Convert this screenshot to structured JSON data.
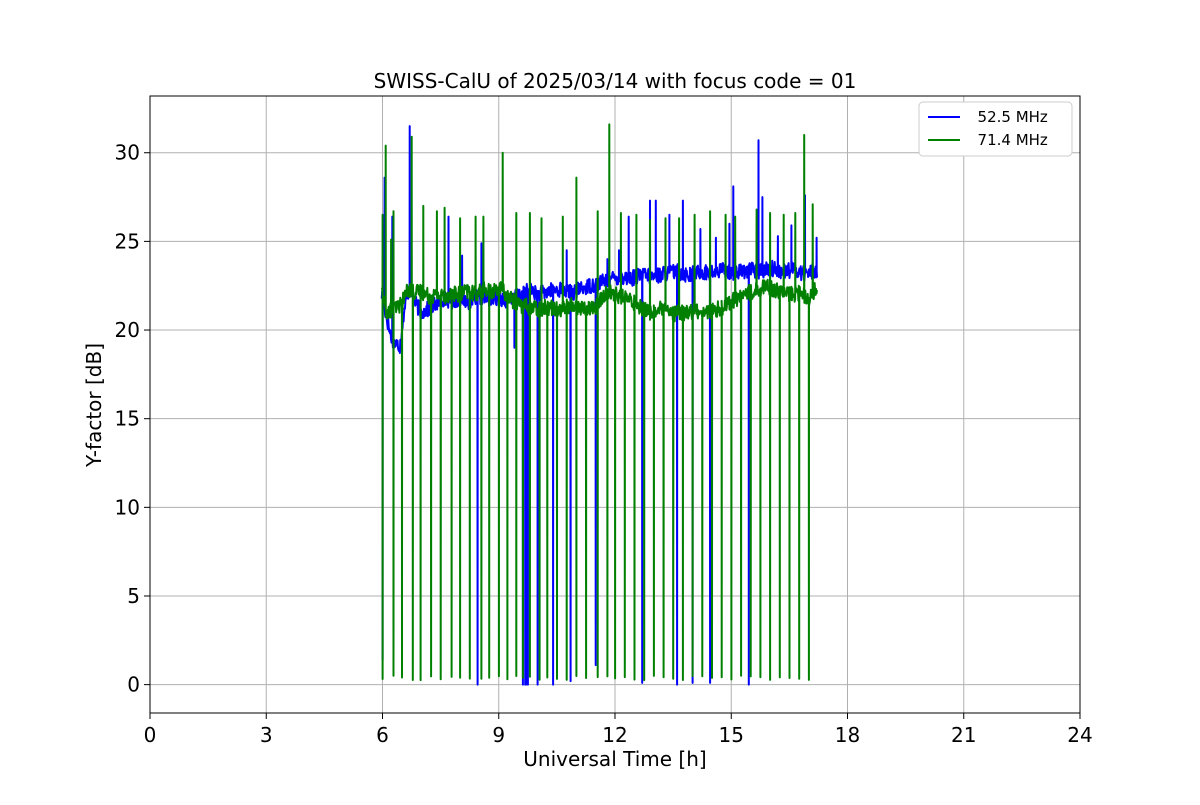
{
  "chart_data": {
    "type": "line",
    "title": "SWISS-CalU of 2025/03/14 with focus code = 01",
    "xlabel": "Universal Time [h]",
    "ylabel": "Y-factor [dB]",
    "xlim": [
      0,
      24
    ],
    "ylim": [
      -1.6,
      33.2
    ],
    "xticks": [
      0,
      3,
      6,
      9,
      12,
      15,
      18,
      21,
      24
    ],
    "yticks": [
      0,
      5,
      10,
      15,
      20,
      25,
      30
    ],
    "grid": true,
    "legend_position": "upper-right",
    "series": [
      {
        "name": "  52.5 MHz",
        "color": "#0000ff",
        "baseline": [
          [
            5.98,
            22.0
          ],
          [
            6.1,
            20.8
          ],
          [
            6.2,
            19.8
          ],
          [
            6.3,
            19.3
          ],
          [
            6.45,
            19.1
          ],
          [
            6.55,
            21.0
          ],
          [
            6.7,
            22.5
          ],
          [
            6.85,
            21.5
          ],
          [
            7.0,
            21.0
          ],
          [
            7.2,
            21.2
          ],
          [
            7.4,
            21.5
          ],
          [
            7.6,
            21.8
          ],
          [
            7.8,
            21.6
          ],
          [
            8.0,
            21.8
          ],
          [
            8.2,
            21.6
          ],
          [
            8.4,
            21.8
          ],
          [
            8.6,
            21.9
          ],
          [
            8.8,
            21.7
          ],
          [
            9.0,
            21.9
          ],
          [
            9.2,
            21.6
          ],
          [
            9.4,
            21.8
          ],
          [
            9.6,
            22.0
          ],
          [
            9.8,
            22.3
          ],
          [
            10.0,
            22.0
          ],
          [
            10.3,
            22.2
          ],
          [
            10.6,
            22.3
          ],
          [
            10.9,
            22.1
          ],
          [
            11.2,
            22.4
          ],
          [
            11.5,
            22.6
          ],
          [
            11.8,
            22.8
          ],
          [
            12.1,
            23.0
          ],
          [
            12.4,
            22.9
          ],
          [
            12.7,
            23.1
          ],
          [
            13.0,
            23.0
          ],
          [
            13.3,
            23.2
          ],
          [
            13.6,
            23.3
          ],
          [
            13.9,
            23.1
          ],
          [
            14.2,
            23.3
          ],
          [
            14.5,
            23.2
          ],
          [
            14.8,
            23.4
          ],
          [
            15.1,
            23.2
          ],
          [
            15.4,
            23.4
          ],
          [
            15.7,
            23.3
          ],
          [
            16.0,
            23.5
          ],
          [
            16.3,
            23.3
          ],
          [
            16.6,
            23.4
          ],
          [
            16.9,
            23.2
          ],
          [
            17.22,
            23.4
          ]
        ],
        "spikes": [
          [
            6.0,
            1.4
          ],
          [
            6.05,
            28.6
          ],
          [
            6.25,
            26.4
          ],
          [
            6.7,
            31.5
          ],
          [
            7.7,
            26.4
          ],
          [
            8.05,
            24.2
          ],
          [
            8.45,
            0.0
          ],
          [
            8.55,
            24.9
          ],
          [
            9.4,
            19.0
          ],
          [
            9.62,
            0.0
          ],
          [
            9.68,
            0.0
          ],
          [
            9.7,
            0.0
          ],
          [
            9.75,
            0.0
          ],
          [
            10.0,
            0.0
          ],
          [
            10.4,
            0.0
          ],
          [
            10.75,
            24.5
          ],
          [
            10.85,
            0.2
          ],
          [
            11.5,
            1.1
          ],
          [
            11.8,
            24.0
          ],
          [
            12.1,
            24.5
          ],
          [
            12.35,
            26.4
          ],
          [
            12.7,
            0.1
          ],
          [
            12.9,
            27.3
          ],
          [
            13.05,
            27.3
          ],
          [
            13.4,
            26.5
          ],
          [
            13.6,
            0.0
          ],
          [
            13.75,
            27.3
          ],
          [
            14.0,
            0.1
          ],
          [
            14.2,
            25.7
          ],
          [
            14.45,
            0.1
          ],
          [
            14.6,
            25.2
          ],
          [
            14.95,
            26.0
          ],
          [
            15.05,
            28.1
          ],
          [
            15.45,
            0.0
          ],
          [
            15.7,
            30.7
          ],
          [
            15.8,
            27.5
          ],
          [
            16.2,
            25.3
          ],
          [
            16.55,
            25.9
          ],
          [
            16.9,
            27.6
          ],
          [
            17.2,
            25.2
          ]
        ]
      },
      {
        "name": "  71.4 MHz",
        "color": "#008000",
        "baseline": [
          [
            5.98,
            22.0
          ],
          [
            6.1,
            21.0
          ],
          [
            6.3,
            21.2
          ],
          [
            6.5,
            21.5
          ],
          [
            6.65,
            22.3
          ],
          [
            6.85,
            22.1
          ],
          [
            7.0,
            22.2
          ],
          [
            7.2,
            21.9
          ],
          [
            7.4,
            22.0
          ],
          [
            7.6,
            21.9
          ],
          [
            7.8,
            22.1
          ],
          [
            8.0,
            22.0
          ],
          [
            8.2,
            22.2
          ],
          [
            8.4,
            22.0
          ],
          [
            8.6,
            22.3
          ],
          [
            8.8,
            22.1
          ],
          [
            9.0,
            22.4
          ],
          [
            9.2,
            22.0
          ],
          [
            9.4,
            21.6
          ],
          [
            9.6,
            21.4
          ],
          [
            9.8,
            21.3
          ],
          [
            10.0,
            21.2
          ],
          [
            10.3,
            21.3
          ],
          [
            10.6,
            21.2
          ],
          [
            10.9,
            21.4
          ],
          [
            11.2,
            21.2
          ],
          [
            11.5,
            21.3
          ],
          [
            11.8,
            22.2
          ],
          [
            12.0,
            22.0
          ],
          [
            12.3,
            21.8
          ],
          [
            12.6,
            21.4
          ],
          [
            12.9,
            21.0
          ],
          [
            13.2,
            21.2
          ],
          [
            13.5,
            20.9
          ],
          [
            13.8,
            21.0
          ],
          [
            14.1,
            21.1
          ],
          [
            14.4,
            21.0
          ],
          [
            14.7,
            21.2
          ],
          [
            15.0,
            21.6
          ],
          [
            15.3,
            22.0
          ],
          [
            15.6,
            22.2
          ],
          [
            15.9,
            22.5
          ],
          [
            16.2,
            22.2
          ],
          [
            16.5,
            22.0
          ],
          [
            16.8,
            22.1
          ],
          [
            17.0,
            21.8
          ],
          [
            17.22,
            22.4
          ]
        ],
        "spikes": [
          [
            6.0,
            26.5
          ],
          [
            6.08,
            30.4
          ],
          [
            6.22,
            25.1
          ],
          [
            6.28,
            26.7
          ],
          [
            6.75,
            30.9
          ],
          [
            7.05,
            27.0
          ],
          [
            7.4,
            26.7
          ],
          [
            7.6,
            26.9
          ],
          [
            8.0,
            26.3
          ],
          [
            8.4,
            26.4
          ],
          [
            8.6,
            26.4
          ],
          [
            9.1,
            30.0
          ],
          [
            9.45,
            26.6
          ],
          [
            9.8,
            26.6
          ],
          [
            10.1,
            26.3
          ],
          [
            10.65,
            26.4
          ],
          [
            11.0,
            28.6
          ],
          [
            11.55,
            26.7
          ],
          [
            11.85,
            31.6
          ],
          [
            12.15,
            26.6
          ],
          [
            12.55,
            26.5
          ],
          [
            12.9,
            26.2
          ],
          [
            13.3,
            26.3
          ],
          [
            13.65,
            26.3
          ],
          [
            14.05,
            26.5
          ],
          [
            14.45,
            26.7
          ],
          [
            14.85,
            26.5
          ],
          [
            15.1,
            26.4
          ],
          [
            15.65,
            26.8
          ],
          [
            16.0,
            26.6
          ],
          [
            16.35,
            26.5
          ],
          [
            16.65,
            26.6
          ],
          [
            16.88,
            31.0
          ],
          [
            17.1,
            27.1
          ]
        ],
        "drops": [
          6.0,
          6.28,
          6.5,
          6.78,
          6.98,
          7.25,
          7.5,
          7.78,
          8.0,
          8.25,
          8.55,
          8.75,
          9.0,
          9.22,
          9.45,
          9.62,
          9.8,
          10.05,
          10.25,
          10.5,
          10.75,
          11.0,
          11.25,
          11.55,
          11.8,
          12.0,
          12.25,
          12.5,
          12.75,
          13.0,
          13.25,
          13.5,
          13.75,
          14.0,
          14.25,
          14.5,
          14.75,
          15.0,
          15.25,
          15.5,
          15.75,
          16.0,
          16.25,
          16.5,
          16.75,
          17.0
        ]
      }
    ]
  }
}
